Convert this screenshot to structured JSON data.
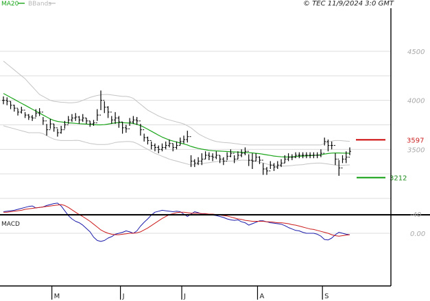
{
  "copyright": "© TEC 11/9/2024 3:0 GMT",
  "legend": {
    "ma": "MA20",
    "bb": "BBands"
  },
  "colors": {
    "ma": "#1aa51a",
    "bb": "#c4c4c4",
    "price": "#000000",
    "resistance": "#cc0000",
    "support": "#0a9a0a",
    "macd": "#1a1aaa",
    "signal": "#cc1a1a",
    "grid": "#dcdcdc"
  },
  "chart_data": [
    {
      "type": "ohlc",
      "x_labels": [
        {
          "label": "M",
          "index": 14
        },
        {
          "label": "J",
          "index": 33
        },
        {
          "label": "J",
          "index": 50
        },
        {
          "label": "A",
          "index": 71
        },
        {
          "label": "S",
          "index": 89
        }
      ],
      "y_ticks": [
        3500,
        4000,
        4500
      ],
      "y_tick_labels": [
        "3500",
        "4000",
        "4500"
      ],
      "ylim": [
        2500,
        4900
      ],
      "levels": [
        {
          "label": "3597",
          "value": 3597,
          "kind": "resistance"
        },
        {
          "label": "3212",
          "value": 3212,
          "kind": "support"
        }
      ],
      "close": [
        4000,
        3990,
        3950,
        3920,
        3880,
        3900,
        3850,
        3830,
        3820,
        3870,
        3880,
        3790,
        3700,
        3760,
        3720,
        3670,
        3700,
        3750,
        3800,
        3820,
        3830,
        3800,
        3820,
        3790,
        3760,
        3770,
        3850,
        4000,
        3930,
        3880,
        3800,
        3820,
        3780,
        3720,
        3710,
        3780,
        3800,
        3790,
        3700,
        3620,
        3590,
        3540,
        3520,
        3500,
        3520,
        3540,
        3560,
        3520,
        3540,
        3580,
        3600,
        3630,
        3380,
        3360,
        3380,
        3400,
        3440,
        3430,
        3420,
        3440,
        3400,
        3380,
        3430,
        3460,
        3400,
        3440,
        3460,
        3480,
        3390,
        3380,
        3420,
        3390,
        3300,
        3280,
        3340,
        3320,
        3340,
        3360,
        3400,
        3420,
        3420,
        3440,
        3440,
        3440,
        3440,
        3440,
        3440,
        3440,
        3460,
        3580,
        3540,
        3540,
        3400,
        3310,
        3400,
        3420,
        3480
      ],
      "range": [
        40,
        40,
        40,
        35,
        35,
        35,
        30,
        30,
        30,
        40,
        40,
        40,
        60,
        50,
        40,
        40,
        40,
        40,
        40,
        40,
        40,
        40,
        40,
        30,
        30,
        30,
        60,
        100,
        60,
        60,
        40,
        60,
        60,
        60,
        40,
        40,
        40,
        40,
        60,
        40,
        40,
        40,
        40,
        40,
        40,
        40,
        40,
        40,
        40,
        40,
        40,
        60,
        60,
        40,
        40,
        60,
        40,
        40,
        40,
        40,
        40,
        40,
        40,
        40,
        40,
        40,
        40,
        40,
        60,
        80,
        40,
        40,
        60,
        40,
        40,
        40,
        40,
        40,
        40,
        40,
        30,
        30,
        30,
        30,
        30,
        30,
        30,
        30,
        40,
        40,
        60,
        40,
        60,
        80,
        40,
        60,
        40
      ],
      "ma20": [
        4070,
        4050,
        4030,
        4010,
        3990,
        3970,
        3950,
        3930,
        3910,
        3890,
        3870,
        3850,
        3830,
        3810,
        3795,
        3785,
        3780,
        3775,
        3770,
        3768,
        3765,
        3762,
        3760,
        3758,
        3755,
        3752,
        3750,
        3750,
        3752,
        3758,
        3764,
        3770,
        3772,
        3772,
        3770,
        3768,
        3764,
        3755,
        3742,
        3725,
        3705,
        3685,
        3665,
        3645,
        3625,
        3610,
        3595,
        3585,
        3575,
        3565,
        3555,
        3545,
        3530,
        3520,
        3510,
        3502,
        3496,
        3490,
        3486,
        3484,
        3482,
        3480,
        3478,
        3476,
        3474,
        3472,
        3470,
        3468,
        3466,
        3464,
        3460,
        3456,
        3450,
        3444,
        3438,
        3432,
        3428,
        3424,
        3422,
        3422,
        3424,
        3428,
        3430,
        3432,
        3434,
        3436,
        3438,
        3440,
        3444,
        3452,
        3458,
        3462,
        3463,
        3463,
        3462,
        3461,
        3460
      ],
      "bb_upper": [
        4400,
        4370,
        4340,
        4310,
        4280,
        4250,
        4220,
        4180,
        4140,
        4100,
        4060,
        4040,
        4020,
        4000,
        3990,
        3985,
        3980,
        3978,
        3975,
        3975,
        3978,
        3985,
        4000,
        4015,
        4030,
        4040,
        4050,
        4055,
        4060,
        4060,
        4055,
        4050,
        4045,
        4040,
        4040,
        4035,
        4020,
        3990,
        3960,
        3930,
        3900,
        3880,
        3860,
        3840,
        3825,
        3810,
        3800,
        3790,
        3780,
        3770,
        3760,
        3740,
        3720,
        3690,
        3660,
        3640,
        3620,
        3605,
        3590,
        3580,
        3575,
        3570,
        3568,
        3565,
        3560,
        3555,
        3550,
        3548,
        3545,
        3545,
        3545,
        3545,
        3545,
        3545,
        3545,
        3545,
        3545,
        3545,
        3545,
        3545,
        3545,
        3545,
        3545,
        3545,
        3545,
        3545,
        3545,
        3545,
        3545,
        3560,
        3575,
        3585,
        3590,
        3590,
        3588,
        3585,
        3582
      ],
      "bb_lower": [
        3740,
        3730,
        3720,
        3710,
        3700,
        3690,
        3680,
        3670,
        3670,
        3670,
        3670,
        3660,
        3640,
        3620,
        3605,
        3595,
        3590,
        3590,
        3590,
        3590,
        3592,
        3590,
        3580,
        3570,
        3560,
        3555,
        3550,
        3550,
        3550,
        3552,
        3560,
        3570,
        3575,
        3578,
        3580,
        3580,
        3575,
        3560,
        3540,
        3520,
        3500,
        3480,
        3460,
        3445,
        3430,
        3415,
        3400,
        3390,
        3380,
        3370,
        3360,
        3350,
        3340,
        3345,
        3350,
        3355,
        3360,
        3365,
        3370,
        3375,
        3380,
        3380,
        3380,
        3380,
        3382,
        3385,
        3390,
        3390,
        3388,
        3385,
        3380,
        3370,
        3360,
        3350,
        3340,
        3335,
        3330,
        3330,
        3330,
        3332,
        3335,
        3340,
        3342,
        3345,
        3350,
        3355,
        3358,
        3360,
        3360,
        3355,
        3350,
        3345,
        3340,
        3338,
        3338,
        3340,
        3342
      ]
    },
    {
      "type": "line",
      "title": "MACD",
      "y_ticks": [
        0,
        -40
      ],
      "y_tick_labels": [
        "0.00",
        "-40"
      ],
      "ylim": [
        -70,
        30
      ],
      "series": [
        {
          "key": "macd",
          "values": [
            -45,
            -46,
            -47,
            -48,
            -50,
            -52,
            -54,
            -56,
            -57,
            -53,
            -54,
            -55,
            -58,
            -60,
            -62,
            -63,
            -57,
            -47,
            -37,
            -30,
            -25,
            -22,
            -17,
            -10,
            -3,
            8,
            15,
            17,
            15,
            10,
            7,
            2,
            0,
            -2,
            -5,
            -3,
            0,
            -5,
            -15,
            -23,
            -30,
            -38,
            -44,
            -46,
            -48,
            -47,
            -46,
            -45,
            -46,
            -45,
            -40,
            -35,
            -40,
            -45,
            -43,
            -40,
            -40,
            -39,
            -38,
            -37,
            -35,
            -33,
            -30,
            -28,
            -27,
            -28,
            -24,
            -22,
            -17,
            -20,
            -23,
            -26,
            -26,
            -24,
            -22,
            -21,
            -20,
            -19,
            -16,
            -12,
            -9,
            -6,
            -5,
            -2,
            0,
            0,
            0,
            2,
            6,
            13,
            14,
            10,
            3,
            -2,
            0,
            2,
            3
          ]
        },
        {
          "key": "signal",
          "values": [
            -44,
            -44,
            -45,
            -46,
            -47,
            -48,
            -50,
            -51,
            -52,
            -53,
            -54,
            -55,
            -56,
            -57,
            -58,
            -59,
            -60,
            -58,
            -54,
            -49,
            -44,
            -39,
            -35,
            -30,
            -25,
            -19,
            -13,
            -7,
            -3,
            0,
            2,
            3,
            3,
            2,
            1,
            0,
            0,
            -1,
            -3,
            -7,
            -11,
            -16,
            -21,
            -26,
            -31,
            -35,
            -39,
            -41,
            -43,
            -44,
            -44,
            -43,
            -42,
            -42,
            -42,
            -41,
            -41,
            -40,
            -40,
            -39,
            -38,
            -37,
            -36,
            -34,
            -32,
            -30,
            -29,
            -27,
            -26,
            -25,
            -25,
            -25,
            -25,
            -24,
            -24,
            -23,
            -22,
            -22,
            -21,
            -20,
            -18,
            -17,
            -15,
            -13,
            -11,
            -9,
            -8,
            -6,
            -4,
            -2,
            0,
            3,
            5,
            6,
            5,
            4,
            3
          ]
        }
      ]
    }
  ]
}
